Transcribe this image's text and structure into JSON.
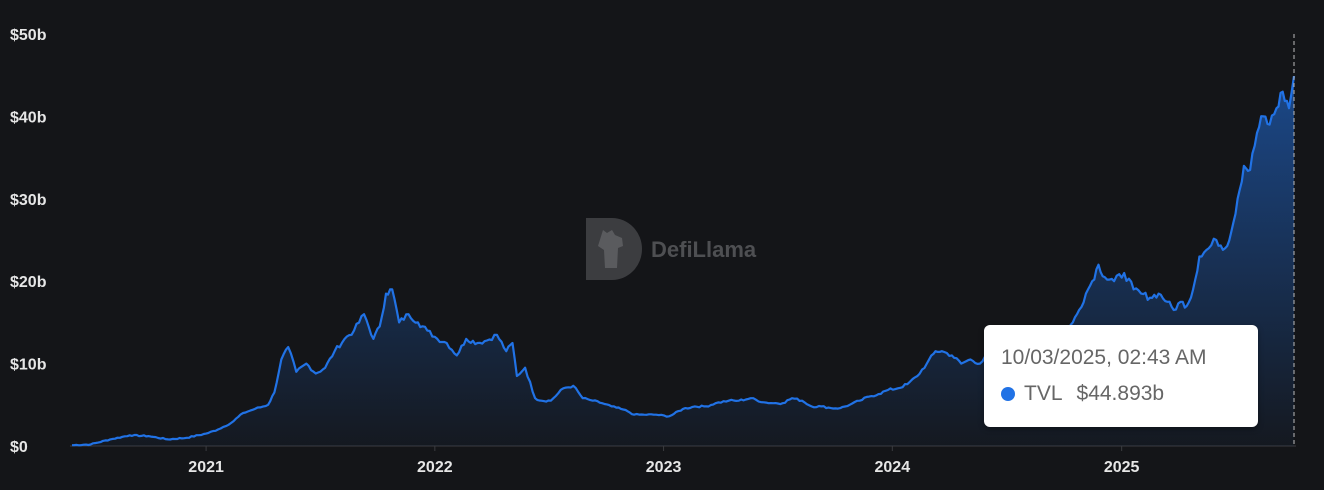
{
  "chart_data": {
    "type": "area",
    "title": "",
    "xlabel": "",
    "ylabel": "",
    "x_ticks": [
      "2021",
      "2022",
      "2023",
      "2024",
      "2025"
    ],
    "y_ticks": [
      "$0",
      "$10b",
      "$20b",
      "$30b",
      "$40b",
      "$50b"
    ],
    "ylim": [
      0,
      50
    ],
    "y_unit": "billion USD",
    "xlim": [
      "2020-06-01",
      "2025-10-03"
    ],
    "grid": false,
    "legend": "none",
    "series": [
      {
        "name": "TVL",
        "color": "#2172e5",
        "x": [
          "2020-06-01",
          "2020-07-01",
          "2020-08-01",
          "2020-09-01",
          "2020-10-01",
          "2020-11-01",
          "2020-12-01",
          "2021-01-01",
          "2021-01-20",
          "2021-02-10",
          "2021-03-01",
          "2021-03-20",
          "2021-04-10",
          "2021-04-20",
          "2021-05-01",
          "2021-05-12",
          "2021-05-25",
          "2021-06-10",
          "2021-06-25",
          "2021-07-10",
          "2021-07-25",
          "2021-08-10",
          "2021-08-25",
          "2021-09-10",
          "2021-09-25",
          "2021-10-05",
          "2021-10-15",
          "2021-10-25",
          "2021-11-05",
          "2021-11-20",
          "2021-12-05",
          "2021-12-20",
          "2022-01-05",
          "2022-01-20",
          "2022-02-05",
          "2022-02-20",
          "2022-03-10",
          "2022-03-25",
          "2022-04-10",
          "2022-04-25",
          "2022-05-05",
          "2022-05-12",
          "2022-05-25",
          "2022-06-10",
          "2022-06-20",
          "2022-07-05",
          "2022-07-25",
          "2022-08-10",
          "2022-08-25",
          "2022-09-10",
          "2022-09-25",
          "2022-10-10",
          "2022-10-25",
          "2022-11-05",
          "2022-11-15",
          "2022-12-01",
          "2022-12-20",
          "2023-01-10",
          "2023-02-01",
          "2023-02-20",
          "2023-03-10",
          "2023-03-25",
          "2023-04-15",
          "2023-05-01",
          "2023-05-20",
          "2023-06-10",
          "2023-06-25",
          "2023-07-10",
          "2023-07-25",
          "2023-08-10",
          "2023-08-25",
          "2023-09-10",
          "2023-09-25",
          "2023-10-10",
          "2023-10-25",
          "2023-11-10",
          "2023-11-25",
          "2023-12-10",
          "2023-12-25",
          "2024-01-10",
          "2024-01-25",
          "2024-02-10",
          "2024-02-25",
          "2024-03-10",
          "2024-03-20",
          "2024-04-05",
          "2024-04-20",
          "2024-05-05",
          "2024-05-20",
          "2024-06-01",
          "2024-06-15",
          "2024-06-30",
          "2024-07-15",
          "2024-08-01",
          "2024-08-15",
          "2024-09-01",
          "2024-09-15",
          "2024-10-01",
          "2024-10-15",
          "2024-10-25",
          "2024-11-05",
          "2024-11-15",
          "2024-11-25",
          "2024-12-05",
          "2024-12-20",
          "2025-01-05",
          "2025-01-20",
          "2025-02-01",
          "2025-02-15",
          "2025-03-01",
          "2025-03-15",
          "2025-03-25",
          "2025-04-05",
          "2025-04-15",
          "2025-04-25",
          "2025-05-05",
          "2025-05-20",
          "2025-06-01",
          "2025-06-15",
          "2025-06-25",
          "2025-07-05",
          "2025-07-15",
          "2025-07-25",
          "2025-08-05",
          "2025-08-15",
          "2025-08-25",
          "2025-09-05",
          "2025-09-15",
          "2025-09-25",
          "2025-10-03"
        ],
        "values": [
          0.1,
          0.2,
          0.8,
          1.3,
          1.2,
          0.8,
          1.0,
          1.5,
          2.0,
          2.8,
          4.0,
          4.5,
          5.0,
          6.5,
          10.5,
          12.0,
          9.0,
          10.0,
          8.8,
          9.5,
          11.5,
          13.0,
          14.0,
          16.0,
          13.0,
          14.5,
          18.5,
          19.0,
          15.0,
          16.0,
          15.0,
          14.0,
          13.0,
          12.5,
          11.0,
          13.0,
          12.5,
          12.8,
          13.5,
          11.5,
          12.5,
          8.5,
          9.5,
          5.8,
          5.5,
          5.5,
          7.0,
          7.3,
          5.8,
          5.5,
          5.2,
          4.8,
          4.5,
          4.2,
          3.8,
          3.8,
          3.8,
          3.6,
          4.5,
          4.8,
          4.8,
          5.2,
          5.5,
          5.5,
          5.8,
          5.3,
          5.2,
          5.2,
          5.8,
          5.5,
          4.8,
          4.8,
          4.6,
          4.6,
          5.0,
          5.5,
          6.0,
          6.3,
          6.8,
          7.0,
          7.5,
          8.5,
          10.0,
          11.5,
          11.5,
          11.0,
          10.0,
          10.5,
          10.0,
          11.0,
          12.5,
          11.0,
          11.5,
          12.5,
          13.0,
          11.5,
          12.0,
          13.5,
          15.0,
          16.5,
          18.5,
          20.0,
          22.0,
          20.5,
          20.0,
          21.0,
          19.0,
          18.5,
          18.0,
          18.5,
          17.5,
          16.5,
          17.5,
          17.0,
          19.0,
          23.0,
          24.0,
          25.0,
          24.0,
          26.0,
          30.0,
          34.0,
          33.5,
          38.0,
          40.0,
          39.0,
          41.0,
          43.0,
          41.0,
          44.893
        ]
      }
    ],
    "tooltip": {
      "date": "10/03/2025, 02:43 AM",
      "series_name": "TVL",
      "value": "$44.893b"
    },
    "watermark": "DefiLlama"
  }
}
